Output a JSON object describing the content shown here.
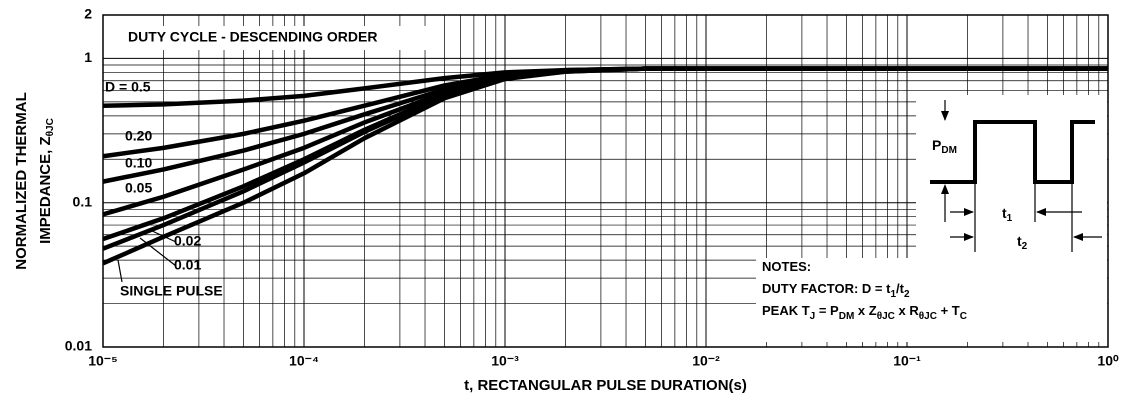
{
  "chart_data": {
    "type": "line",
    "xlabel": "t, RECTANGULAR  PULSE DURATION(s)",
    "ylabel": [
      [
        "NORMALIZED THERMAL"
      ],
      [
        "IMPEDANCE, Z",
        "θJC"
      ]
    ],
    "x": [
      1e-05,
      2e-05,
      5e-05,
      0.0001,
      0.0002,
      0.0005,
      0.001,
      0.002,
      0.005,
      0.01,
      0.1,
      1
    ],
    "series": [
      {
        "name": "D = 0.5",
        "color": "#000000",
        "values": [
          0.47,
          0.48,
          0.51,
          0.55,
          0.62,
          0.73,
          0.8,
          0.83,
          0.85,
          0.85,
          0.85,
          0.85
        ]
      },
      {
        "name": "0.20",
        "color": "#000000",
        "values": [
          0.21,
          0.24,
          0.3,
          0.37,
          0.47,
          0.65,
          0.77,
          0.83,
          0.85,
          0.85,
          0.85,
          0.85
        ]
      },
      {
        "name": "0.10",
        "color": "#000000",
        "values": [
          0.14,
          0.17,
          0.23,
          0.3,
          0.41,
          0.61,
          0.75,
          0.82,
          0.85,
          0.85,
          0.85,
          0.85
        ]
      },
      {
        "name": "0.05",
        "color": "#000000",
        "values": [
          0.083,
          0.11,
          0.17,
          0.24,
          0.36,
          0.58,
          0.74,
          0.82,
          0.85,
          0.85,
          0.85,
          0.85
        ]
      },
      {
        "name": "0.02",
        "color": "#000000",
        "values": [
          0.056,
          0.078,
          0.13,
          0.2,
          0.32,
          0.56,
          0.73,
          0.82,
          0.85,
          0.85,
          0.85,
          0.85
        ]
      },
      {
        "name": "0.01",
        "color": "#000000",
        "values": [
          0.048,
          0.07,
          0.12,
          0.19,
          0.31,
          0.55,
          0.73,
          0.81,
          0.85,
          0.85,
          0.85,
          0.85
        ]
      },
      {
        "name": "SINGLE PULSE",
        "color": "#000000",
        "values": [
          0.038,
          0.058,
          0.1,
          0.16,
          0.28,
          0.53,
          0.72,
          0.81,
          0.85,
          0.85,
          0.85,
          0.85
        ]
      }
    ],
    "xlim": [
      1e-05,
      1
    ],
    "ylim": [
      0.01,
      2
    ],
    "xticks": [
      {
        "value": 1e-05,
        "label": "10⁻⁵"
      },
      {
        "value": 0.0001,
        "label": "10⁻⁴"
      },
      {
        "value": 0.001,
        "label": "10⁻³"
      },
      {
        "value": 0.01,
        "label": "10⁻²"
      },
      {
        "value": 0.1,
        "label": "10⁻¹"
      },
      {
        "value": 1,
        "label": "10⁰"
      }
    ],
    "yticks": [
      0.01,
      0.1,
      1,
      2
    ],
    "xlog": true,
    "ylog": true,
    "grid": true,
    "annotation": "DUTY CYCLE - DESCENDING ORDER",
    "inset": {
      "pdm": [
        "P",
        "DM"
      ],
      "t1": [
        "t",
        "1"
      ],
      "t2": [
        "t",
        "2"
      ]
    },
    "notes": [
      [
        "NOTES:"
      ],
      [
        "DUTY FACTOR: D = t",
        "1",
        "/t",
        "2"
      ],
      [
        "PEAK T",
        "J",
        " = P",
        "DM",
        " x Z",
        "θJC",
        " x R",
        "θJC",
        " + T",
        "C"
      ]
    ]
  }
}
